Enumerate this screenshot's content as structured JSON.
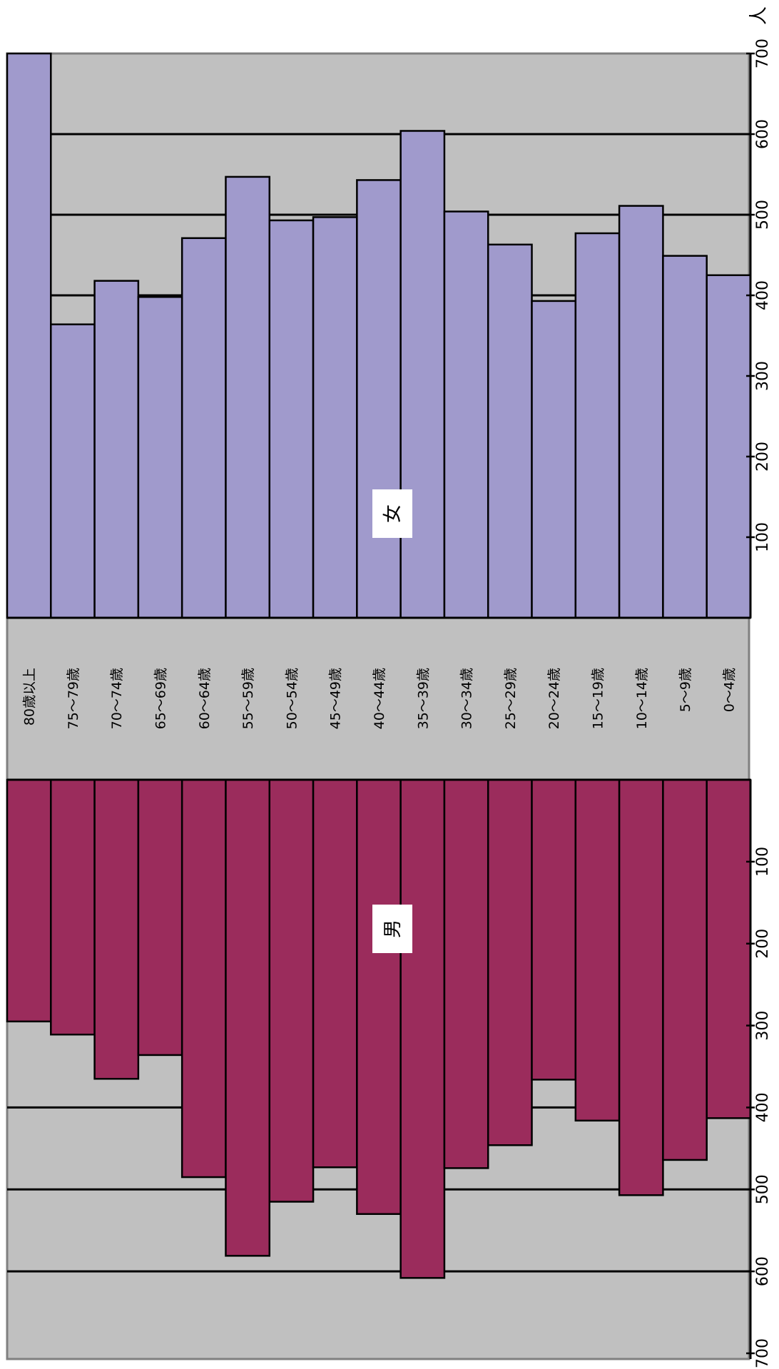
{
  "chart_data": {
    "type": "bar",
    "orientation": "population-pyramid",
    "unit": "人",
    "categories": [
      "80歳以上",
      "75～79歳",
      "70～74歳",
      "65～69歳",
      "60～64歳",
      "55～59歳",
      "50～54歳",
      "45～49歳",
      "40～44歳",
      "35～39歳",
      "30～34歳",
      "25～29歳",
      "20～24歳",
      "15～19歳",
      "10～14歳",
      "5～9歳",
      "0～4歳"
    ],
    "series": [
      {
        "name": "女",
        "color": "#a09acc",
        "values": [
          700,
          364,
          418,
          398,
          471,
          547,
          493,
          497,
          543,
          604,
          504,
          463,
          393,
          477,
          511,
          449,
          425
        ]
      },
      {
        "name": "男",
        "color": "#9b2c5c",
        "values": [
          295,
          311,
          365,
          336,
          485,
          581,
          515,
          473,
          530,
          608,
          474,
          446,
          366,
          416,
          507,
          464,
          413
        ]
      }
    ],
    "female_axis": {
      "range": [
        0,
        700
      ],
      "ticks": [
        "100",
        "200",
        "300",
        "400",
        "500",
        "600",
        "700"
      ]
    },
    "male_axis": {
      "range": [
        0,
        700
      ],
      "ticks": [
        "100",
        "200",
        "300",
        "400",
        "500",
        "600",
        "700"
      ]
    },
    "gridlines": [
      400,
      500,
      600
    ]
  }
}
